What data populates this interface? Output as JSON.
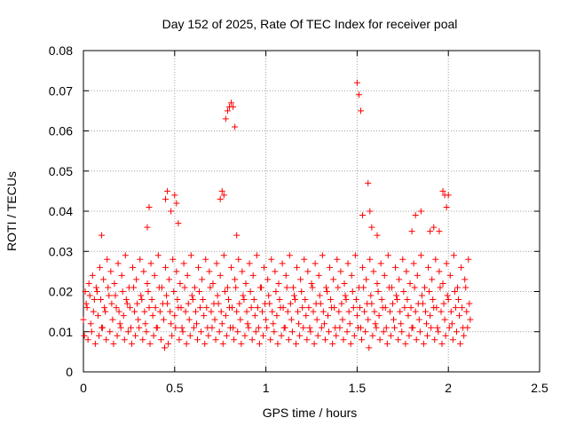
{
  "chart_data": {
    "type": "scatter",
    "title": "Day 152 of 2025, Rate Of TEC Index for receiver poal",
    "xlabel": "GPS time / hours",
    "ylabel": "ROTI / TECUs",
    "xlim": [
      0,
      2.5
    ],
    "ylim": [
      0,
      0.08
    ],
    "x_ticks": [
      0,
      0.5,
      1,
      1.5,
      2,
      2.5
    ],
    "x_tick_labels": [
      "0",
      "0.5",
      "1",
      "1.5",
      "2",
      "2.5"
    ],
    "y_ticks": [
      0,
      0.01,
      0.02,
      0.03,
      0.04,
      0.05,
      0.06,
      0.07,
      0.08
    ],
    "y_tick_labels": [
      "0",
      "0.01",
      "0.02",
      "0.03",
      "0.04",
      "0.05",
      "0.06",
      "0.07",
      "0.08"
    ],
    "grid": true,
    "marker": "+",
    "marker_color": "#ff0000",
    "series": [
      {
        "x": [
          0.0,
          0.02,
          0.04,
          0.06,
          0.08,
          0.1,
          0.12,
          0.14,
          0.16,
          0.18,
          0.2,
          0.22,
          0.24,
          0.26,
          0.28,
          0.3,
          0.32,
          0.34,
          0.36,
          0.38,
          0.4,
          0.42,
          0.44,
          0.46,
          0.48,
          0.5,
          0.52,
          0.54,
          0.56,
          0.58,
          0.6,
          0.62,
          0.64,
          0.66,
          0.68,
          0.7,
          0.72,
          0.74,
          0.76,
          0.78,
          0.8,
          0.82,
          0.84,
          0.86,
          0.88,
          0.9,
          0.92,
          0.94,
          0.96,
          0.98,
          1.0,
          1.02,
          1.04,
          1.06,
          1.08,
          1.1,
          1.12,
          1.14,
          1.16,
          1.18,
          1.2,
          1.22,
          1.24,
          1.26,
          1.28,
          1.3,
          1.32,
          1.34,
          1.36,
          1.38,
          1.4,
          1.42,
          1.44,
          1.46,
          1.48,
          1.5,
          1.52,
          1.54,
          1.56,
          1.58,
          1.6,
          1.62,
          1.64,
          1.66,
          1.68,
          1.7,
          1.72,
          1.74,
          1.76,
          1.78,
          1.8,
          1.82,
          1.84,
          1.86,
          1.88,
          1.9,
          1.92,
          1.94,
          1.96,
          1.98,
          2.0,
          2.02,
          2.04,
          2.06,
          2.08,
          2.1,
          2.12,
          0.01,
          0.03,
          0.05,
          0.07,
          0.09,
          0.11,
          0.13,
          0.15,
          0.17,
          0.19,
          0.21,
          0.23,
          0.25,
          0.27,
          0.29,
          0.31,
          0.33,
          0.35,
          0.37,
          0.39,
          0.41,
          0.43,
          0.45,
          0.47,
          0.49,
          0.51,
          0.53,
          0.55,
          0.57,
          0.59,
          0.61,
          0.63,
          0.65,
          0.67,
          0.69,
          0.71,
          0.73,
          0.75,
          0.77,
          0.79,
          0.81,
          0.83,
          0.85,
          0.87,
          0.89,
          0.91,
          0.93,
          0.95,
          0.97,
          0.99,
          1.01,
          1.03,
          1.05,
          1.07,
          1.09,
          1.11,
          1.13,
          1.15,
          1.17,
          1.19,
          1.21,
          1.23,
          1.25,
          1.27,
          1.29,
          1.31,
          1.33,
          1.35,
          1.37,
          1.39,
          1.41,
          1.43,
          1.45,
          1.47,
          1.49,
          1.51,
          1.53,
          1.55,
          1.57,
          1.59,
          1.61,
          1.63,
          1.65,
          1.67,
          1.69,
          1.71,
          1.73,
          1.75,
          1.77,
          1.79,
          1.81,
          1.83,
          1.85,
          1.87,
          1.89,
          1.91,
          1.93,
          1.95,
          1.97,
          1.99,
          2.01,
          2.03,
          2.05,
          2.07,
          2.09,
          2.11,
          0.005,
          0.025,
          0.045,
          0.065,
          0.085,
          0.105,
          0.125,
          0.145,
          0.165,
          0.185,
          0.205,
          0.225,
          0.245,
          0.265,
          0.285,
          0.305,
          0.325,
          0.345,
          0.365,
          0.385,
          0.405,
          0.425,
          0.445,
          0.465,
          0.485,
          0.505,
          0.525,
          0.545,
          0.565,
          0.585,
          0.605,
          0.625,
          0.645,
          0.665,
          0.685,
          0.705,
          0.725,
          0.745,
          0.765,
          0.785,
          0.805,
          0.825,
          0.845,
          0.865,
          0.885,
          0.905,
          0.925,
          0.945,
          0.965,
          0.985,
          1.005,
          1.025,
          1.045,
          1.065,
          1.085,
          1.105,
          1.125,
          1.145,
          1.165,
          1.185,
          1.205,
          1.225,
          1.245,
          1.265,
          1.285,
          1.305,
          1.325,
          1.345,
          1.365,
          1.385,
          1.405,
          1.425,
          1.445,
          1.465,
          1.485,
          1.505,
          1.525,
          1.545,
          1.565,
          1.585,
          1.605,
          1.625,
          1.645,
          1.665,
          1.685,
          1.705,
          1.725,
          1.745,
          1.765,
          1.785,
          1.805,
          1.825,
          1.845,
          1.865,
          1.885,
          1.905,
          1.925,
          1.945,
          1.965,
          1.985,
          2.005,
          2.025,
          2.045,
          2.065,
          2.085,
          2.105,
          0.015,
          0.035,
          0.055,
          0.075,
          0.095,
          0.115,
          0.135,
          0.155,
          0.175,
          0.195,
          0.215,
          0.235,
          0.255,
          0.275,
          0.295,
          0.315,
          0.335,
          0.355,
          0.375,
          0.395,
          0.415,
          0.435,
          0.455,
          0.475,
          0.495,
          0.515,
          0.535,
          0.555,
          0.575,
          0.595,
          0.615,
          0.635,
          0.655,
          0.675,
          0.695,
          0.715,
          0.735,
          0.755,
          0.775,
          0.795,
          0.815,
          0.835,
          0.855,
          0.875,
          0.895,
          0.915,
          0.935,
          0.955,
          0.975,
          0.995,
          1.015,
          1.035,
          1.055,
          1.075,
          1.095,
          1.115,
          1.135,
          1.155,
          1.175,
          1.195,
          1.215,
          1.235,
          1.255,
          1.275,
          1.295,
          1.315,
          1.335,
          1.355,
          1.375,
          1.395,
          1.415,
          1.435,
          1.455,
          1.475,
          1.495,
          1.515,
          1.535,
          1.555,
          1.575,
          1.595,
          1.615,
          1.635,
          1.655,
          1.675,
          1.695,
          1.715,
          1.735,
          1.755,
          1.775,
          1.795,
          1.815,
          1.835,
          1.855,
          1.875,
          1.895,
          1.915,
          1.935,
          1.955,
          1.975,
          1.995,
          2.015,
          2.035,
          2.055,
          2.075,
          2.095,
          2.115,
          0.1,
          0.35,
          0.36,
          0.45,
          0.46,
          0.48,
          0.5,
          0.51,
          0.52,
          0.75,
          0.76,
          0.77,
          0.78,
          0.79,
          0.8,
          0.81,
          0.82,
          0.83,
          0.84,
          1.5,
          1.51,
          1.52,
          1.53,
          1.56,
          1.57,
          1.58,
          1.61,
          1.8,
          1.82,
          1.85,
          1.9,
          1.92,
          1.95,
          1.97,
          1.98,
          1.99,
          2.0
        ],
        "y": [
          0.013,
          0.016,
          0.012,
          0.018,
          0.014,
          0.011,
          0.015,
          0.019,
          0.013,
          0.016,
          0.012,
          0.014,
          0.017,
          0.011,
          0.015,
          0.013,
          0.018,
          0.012,
          0.016,
          0.014,
          0.011,
          0.015,
          0.013,
          0.017,
          0.012,
          0.014,
          0.016,
          0.011,
          0.015,
          0.013,
          0.018,
          0.012,
          0.016,
          0.014,
          0.011,
          0.015,
          0.013,
          0.017,
          0.012,
          0.014,
          0.016,
          0.011,
          0.015,
          0.013,
          0.018,
          0.012,
          0.016,
          0.014,
          0.011,
          0.015,
          0.013,
          0.017,
          0.012,
          0.014,
          0.016,
          0.011,
          0.015,
          0.013,
          0.018,
          0.012,
          0.016,
          0.014,
          0.011,
          0.015,
          0.013,
          0.017,
          0.012,
          0.014,
          0.016,
          0.011,
          0.015,
          0.013,
          0.018,
          0.012,
          0.016,
          0.014,
          0.011,
          0.015,
          0.013,
          0.017,
          0.012,
          0.014,
          0.016,
          0.011,
          0.015,
          0.013,
          0.018,
          0.012,
          0.016,
          0.014,
          0.011,
          0.015,
          0.013,
          0.017,
          0.012,
          0.014,
          0.016,
          0.011,
          0.015,
          0.013,
          0.018,
          0.012,
          0.016,
          0.014,
          0.011,
          0.015,
          0.013,
          0.02,
          0.022,
          0.024,
          0.021,
          0.026,
          0.023,
          0.028,
          0.025,
          0.022,
          0.027,
          0.024,
          0.029,
          0.021,
          0.026,
          0.023,
          0.028,
          0.025,
          0.022,
          0.027,
          0.024,
          0.029,
          0.021,
          0.026,
          0.023,
          0.028,
          0.025,
          0.022,
          0.027,
          0.024,
          0.029,
          0.021,
          0.026,
          0.023,
          0.028,
          0.025,
          0.022,
          0.027,
          0.024,
          0.029,
          0.021,
          0.026,
          0.023,
          0.028,
          0.025,
          0.022,
          0.027,
          0.024,
          0.029,
          0.021,
          0.026,
          0.023,
          0.028,
          0.025,
          0.022,
          0.027,
          0.024,
          0.029,
          0.021,
          0.026,
          0.023,
          0.028,
          0.025,
          0.022,
          0.027,
          0.024,
          0.029,
          0.021,
          0.026,
          0.023,
          0.028,
          0.025,
          0.022,
          0.027,
          0.024,
          0.029,
          0.021,
          0.026,
          0.023,
          0.028,
          0.025,
          0.022,
          0.027,
          0.024,
          0.029,
          0.021,
          0.026,
          0.023,
          0.028,
          0.025,
          0.022,
          0.027,
          0.024,
          0.029,
          0.021,
          0.026,
          0.023,
          0.028,
          0.025,
          0.022,
          0.027,
          0.024,
          0.029,
          0.021,
          0.026,
          0.023,
          0.028,
          0.009,
          0.008,
          0.01,
          0.007,
          0.009,
          0.011,
          0.008,
          0.01,
          0.007,
          0.009,
          0.011,
          0.008,
          0.01,
          0.007,
          0.009,
          0.011,
          0.008,
          0.01,
          0.007,
          0.009,
          0.011,
          0.008,
          0.006,
          0.007,
          0.009,
          0.011,
          0.008,
          0.01,
          0.007,
          0.009,
          0.011,
          0.008,
          0.01,
          0.007,
          0.009,
          0.011,
          0.008,
          0.01,
          0.007,
          0.009,
          0.011,
          0.008,
          0.01,
          0.007,
          0.009,
          0.011,
          0.008,
          0.01,
          0.007,
          0.009,
          0.011,
          0.008,
          0.01,
          0.007,
          0.009,
          0.011,
          0.008,
          0.01,
          0.007,
          0.009,
          0.011,
          0.008,
          0.01,
          0.007,
          0.009,
          0.011,
          0.008,
          0.01,
          0.007,
          0.009,
          0.011,
          0.008,
          0.01,
          0.007,
          0.009,
          0.011,
          0.008,
          0.01,
          0.006,
          0.009,
          0.011,
          0.008,
          0.01,
          0.007,
          0.009,
          0.011,
          0.008,
          0.01,
          0.007,
          0.009,
          0.011,
          0.008,
          0.01,
          0.007,
          0.009,
          0.011,
          0.008,
          0.01,
          0.007,
          0.009,
          0.011,
          0.008,
          0.01,
          0.007,
          0.009,
          0.011,
          0.017,
          0.019,
          0.015,
          0.02,
          0.018,
          0.016,
          0.021,
          0.017,
          0.019,
          0.015,
          0.02,
          0.018,
          0.016,
          0.021,
          0.017,
          0.019,
          0.015,
          0.02,
          0.018,
          0.016,
          0.021,
          0.017,
          0.019,
          0.015,
          0.02,
          0.018,
          0.016,
          0.021,
          0.017,
          0.019,
          0.015,
          0.02,
          0.018,
          0.016,
          0.021,
          0.017,
          0.019,
          0.015,
          0.02,
          0.018,
          0.016,
          0.021,
          0.017,
          0.019,
          0.015,
          0.02,
          0.018,
          0.016,
          0.021,
          0.017,
          0.019,
          0.015,
          0.02,
          0.018,
          0.016,
          0.021,
          0.017,
          0.019,
          0.015,
          0.02,
          0.018,
          0.016,
          0.021,
          0.017,
          0.019,
          0.015,
          0.02,
          0.018,
          0.016,
          0.021,
          0.017,
          0.019,
          0.015,
          0.02,
          0.018,
          0.016,
          0.021,
          0.017,
          0.019,
          0.015,
          0.02,
          0.018,
          0.016,
          0.021,
          0.017,
          0.019,
          0.015,
          0.02,
          0.018,
          0.016,
          0.021,
          0.017,
          0.019,
          0.015,
          0.02,
          0.018,
          0.016,
          0.021,
          0.017,
          0.019,
          0.015,
          0.02,
          0.018,
          0.016,
          0.021,
          0.017,
          0.034,
          0.036,
          0.041,
          0.043,
          0.045,
          0.04,
          0.044,
          0.042,
          0.037,
          0.043,
          0.045,
          0.044,
          0.063,
          0.065,
          0.066,
          0.067,
          0.066,
          0.061,
          0.034,
          0.072,
          0.069,
          0.065,
          0.039,
          0.047,
          0.04,
          0.036,
          0.034,
          0.035,
          0.039,
          0.04,
          0.035,
          0.036,
          0.035,
          0.045,
          0.044,
          0.041,
          0.044
        ]
      }
    ]
  }
}
